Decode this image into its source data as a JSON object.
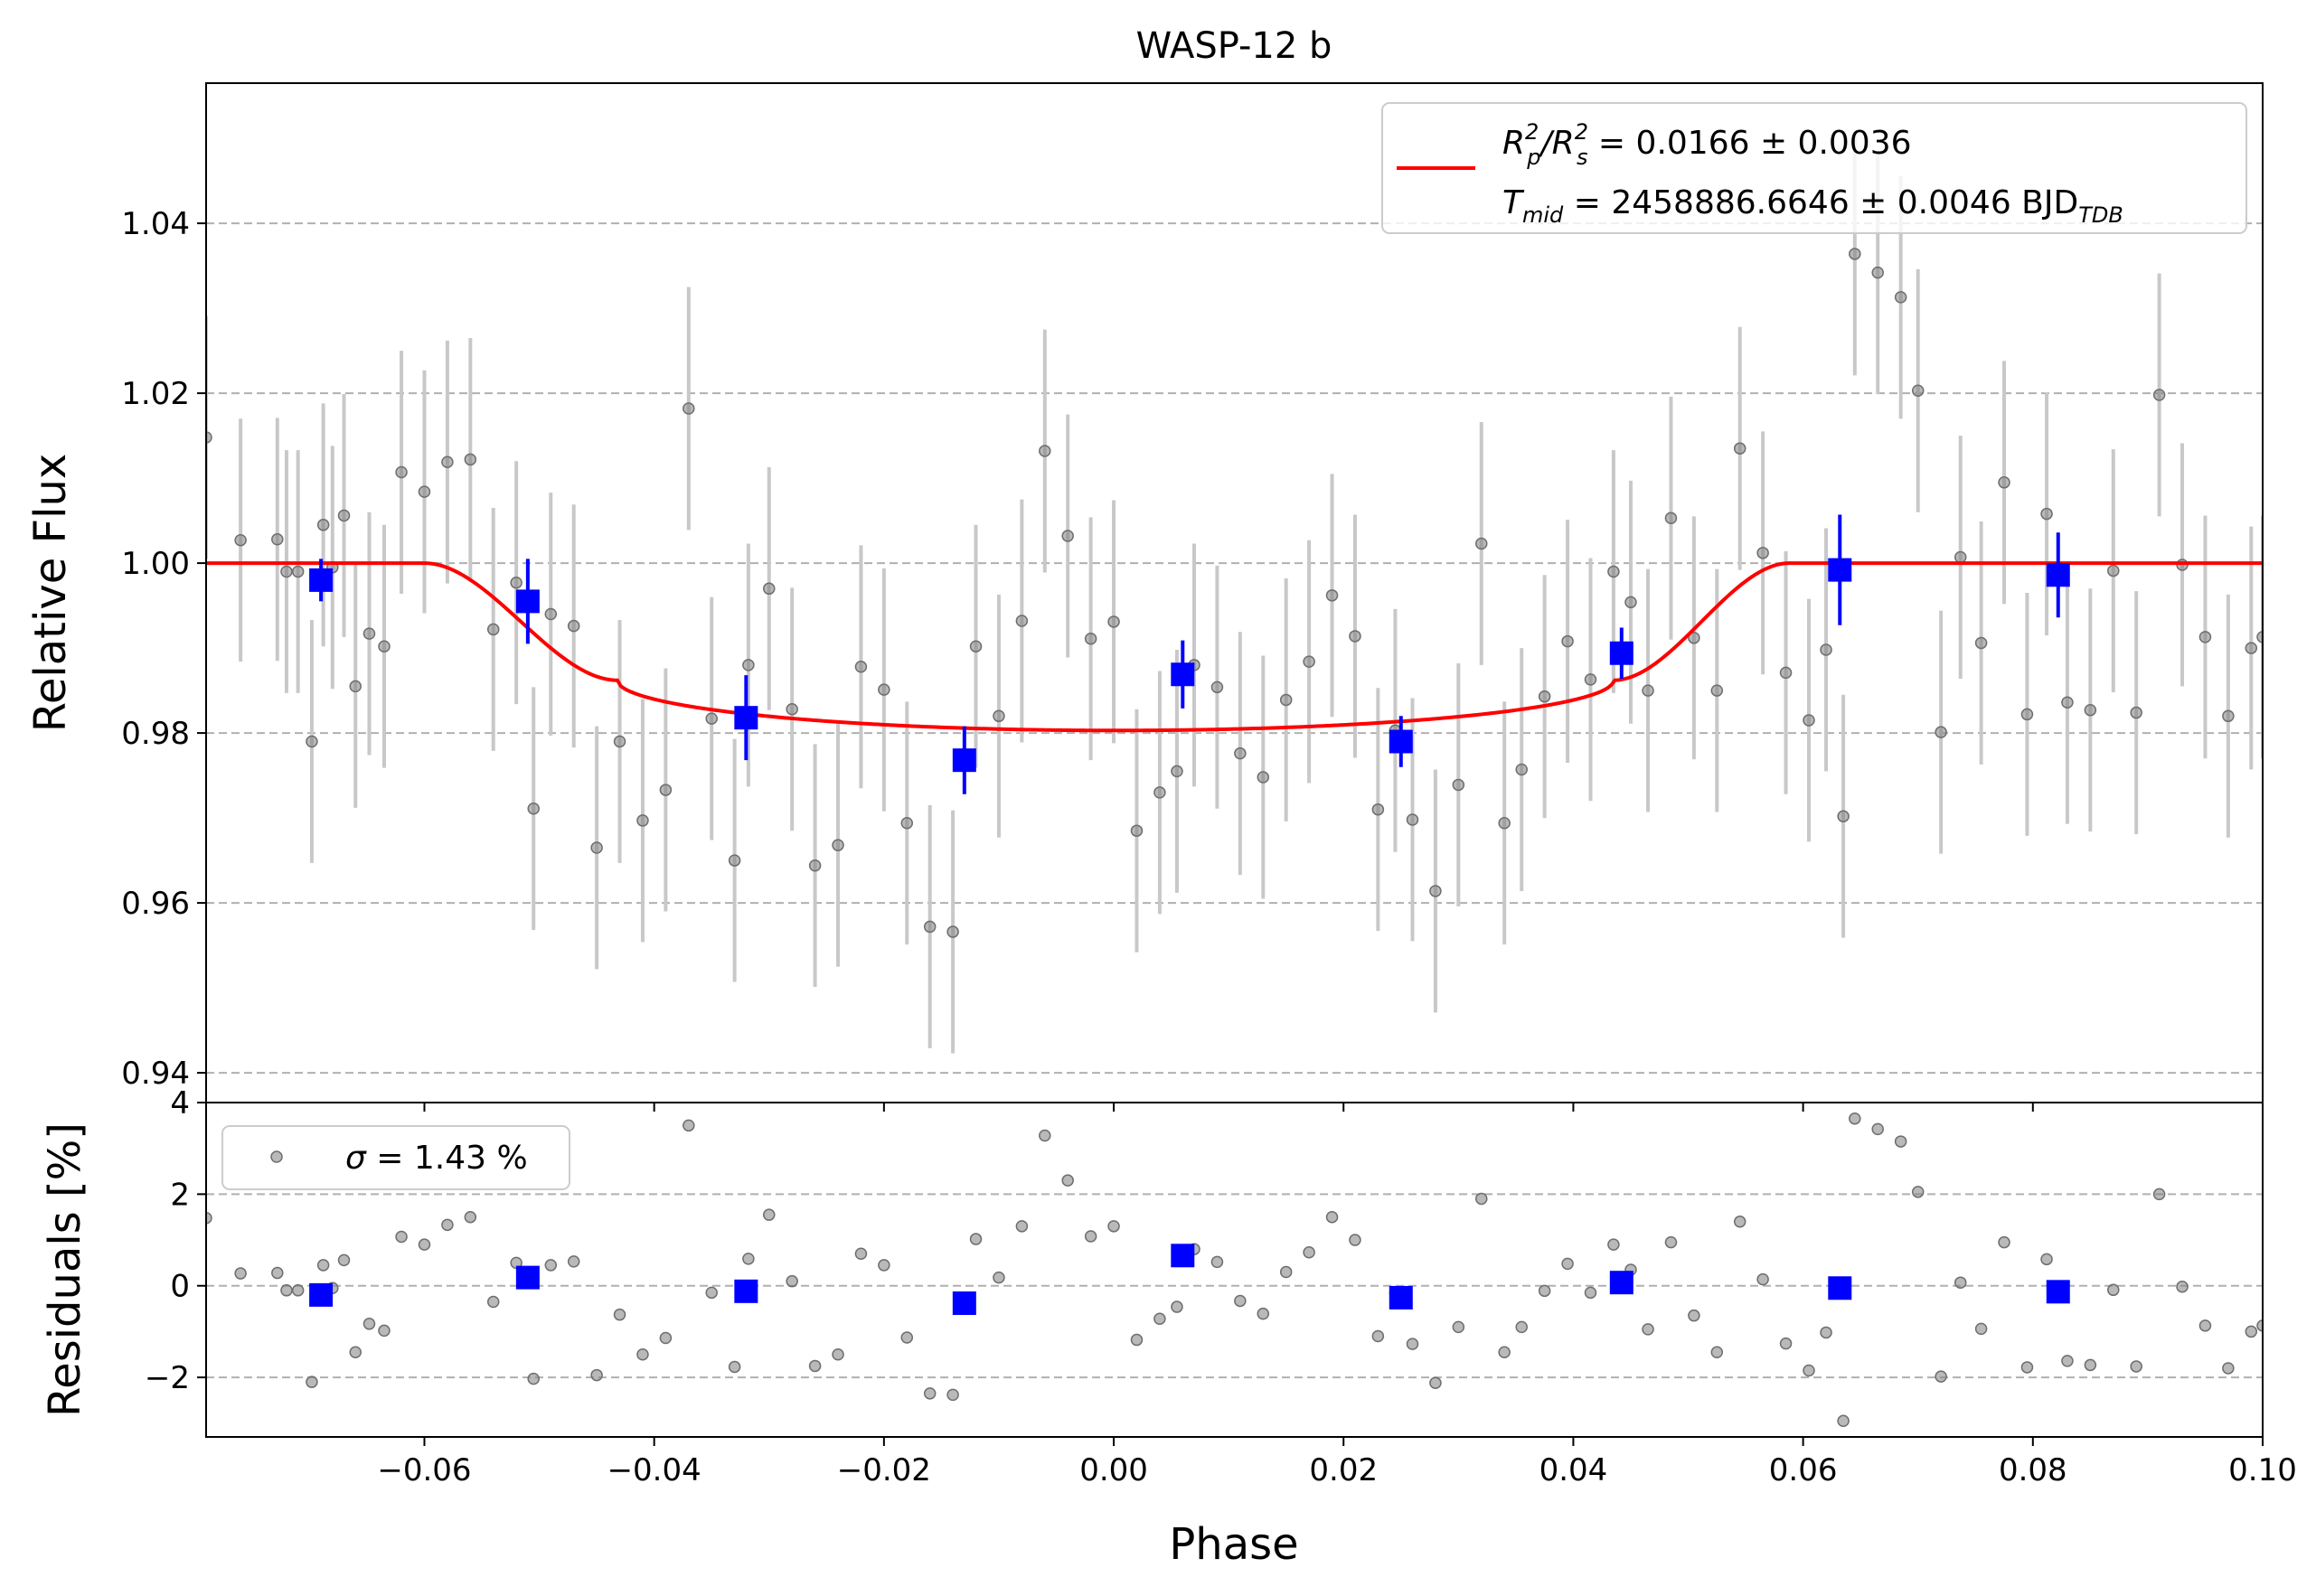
{
  "chart_data": [
    {
      "panel": "transit",
      "type": "scatter",
      "title": "WASP-12 b",
      "xlabel": "",
      "ylabel": "Relative Flux",
      "xlim": [
        -0.079,
        0.1
      ],
      "ylim": [
        0.9365,
        1.0565
      ],
      "xticks": [
        -0.06,
        -0.04,
        -0.02,
        0.0,
        0.02,
        0.04,
        0.06,
        0.08,
        0.1
      ],
      "xtick_labels": [
        "−0.06",
        "−0.04",
        "−0.02",
        "0.00",
        "0.02",
        "0.04",
        "0.06",
        "0.08",
        "0.10"
      ],
      "yticks": [
        0.94,
        0.96,
        0.98,
        1.0,
        1.02,
        1.04
      ],
      "ytick_labels": [
        "0.94",
        "0.96",
        "0.98",
        "1.00",
        "1.02",
        "1.04"
      ],
      "grid": "horizontal dashed",
      "legend_position": "top-right",
      "legend_line1": {
        "main": "R",
        "sub1": "p",
        "sup1": "2",
        "slash": "/R",
        "sub2": "s",
        "sup2": "2",
        "rest": " = 0.0166 ± 0.0036"
      },
      "legend_line2": {
        "main": "T",
        "sub": "mid",
        "rest": " = 2458886.6646 ± 0.0046 BJD",
        "sub2": "TDB"
      },
      "colors": {
        "data": "#808080",
        "errorbar": "#c8c8c8",
        "binned": "#0000ff",
        "model": "#ff0000",
        "grid": "#b0b0b0"
      },
      "series": [
        {
          "role": "data",
          "x": [
            -0.079,
            -0.076,
            -0.0728,
            -0.072,
            -0.071,
            -0.0698,
            -0.0688,
            -0.068,
            -0.067,
            -0.066,
            -0.0648,
            -0.0635,
            -0.062,
            -0.06,
            -0.058,
            -0.056,
            -0.054,
            -0.052,
            -0.0505,
            -0.049,
            -0.047,
            -0.045,
            -0.043,
            -0.041,
            -0.039,
            -0.037,
            -0.035,
            -0.033,
            -0.0318,
            -0.03,
            -0.028,
            -0.026,
            -0.024,
            -0.022,
            -0.02,
            -0.018,
            -0.016,
            -0.014,
            -0.012,
            -0.01,
            -0.008,
            -0.006,
            -0.004,
            -0.002,
            0.0,
            0.002,
            0.004,
            0.0055,
            0.007,
            0.009,
            0.011,
            0.013,
            0.015,
            0.017,
            0.019,
            0.021,
            0.023,
            0.0245,
            0.026,
            0.028,
            0.03,
            0.032,
            0.034,
            0.0355,
            0.0375,
            0.0395,
            0.0415,
            0.0435,
            0.045,
            0.0465,
            0.0485,
            0.0505,
            0.0525,
            0.0545,
            0.0565,
            0.0585,
            0.0605,
            0.062,
            0.0635,
            0.0645,
            0.0665,
            0.0685,
            0.07,
            0.072,
            0.0737,
            0.0755,
            0.0775,
            0.0795,
            0.0812,
            0.083,
            0.085,
            0.087,
            0.089,
            0.091,
            0.093,
            0.095,
            0.097,
            0.099,
            0.1
          ],
          "y": [
            1.0148,
            1.0027,
            1.0028,
            0.999,
            0.999,
            0.979,
            1.0045,
            0.9995,
            1.0056,
            0.9855,
            0.9917,
            0.9902,
            1.0107,
            1.0084,
            1.0119,
            1.0122,
            0.9922,
            0.9977,
            0.9711,
            0.994,
            0.9926,
            0.9665,
            0.979,
            0.9697,
            0.9733,
            1.0182,
            0.9817,
            0.965,
            0.988,
            0.997,
            0.9828,
            0.9644,
            0.9668,
            0.9878,
            0.9851,
            0.9694,
            0.9572,
            0.9566,
            0.9902,
            0.982,
            0.9932,
            1.0132,
            1.0032,
            0.9911,
            0.9931,
            0.9685,
            0.973,
            0.9755,
            0.988,
            0.9854,
            0.9776,
            0.9748,
            0.9839,
            0.9884,
            0.9962,
            0.9914,
            0.971,
            0.9803,
            0.9698,
            0.9614,
            0.9739,
            1.0023,
            0.9694,
            0.9757,
            0.9843,
            0.9908,
            0.9863,
            0.999,
            0.9954,
            0.985,
            1.0053,
            0.9912,
            0.985,
            1.0135,
            1.0012,
            0.9871,
            0.9815,
            0.9898,
            0.9702,
            1.0364,
            1.0342,
            1.0313,
            1.0203,
            0.9801,
            1.0007,
            0.9906,
            1.0095,
            0.9822,
            1.0058,
            0.9836,
            0.9827,
            0.9991,
            0.9824,
            1.0198,
            0.9998,
            0.9913,
            0.982,
            0.99,
            0.9913
          ],
          "yerr": 0.0143
        },
        {
          "role": "binned",
          "x": [
            -0.069,
            -0.051,
            -0.032,
            -0.013,
            0.006,
            0.025,
            0.0442,
            0.0632,
            0.0822
          ],
          "y": [
            0.998,
            0.9955,
            0.9818,
            0.9768,
            0.9869,
            0.979,
            0.9894,
            0.9992,
            0.9986
          ],
          "yerr": [
            0.0025,
            0.005,
            0.005,
            0.004,
            0.004,
            0.003,
            0.003,
            0.0065,
            0.005
          ]
        },
        {
          "role": "model",
          "params": {
            "depth": 0.0197,
            "t1": -0.06,
            "t2": -0.0432,
            "t3": 0.0435,
            "t4": 0.0588,
            "limb": 0.3
          }
        }
      ]
    },
    {
      "panel": "residuals",
      "type": "scatter",
      "xlabel": "Phase",
      "ylabel": "Residuals [%]",
      "xlim": [
        -0.079,
        0.1
      ],
      "ylim": [
        -3.3,
        4.0
      ],
      "yticks": [
        -2,
        0,
        2,
        4
      ],
      "ytick_labels": [
        "−2",
        "0",
        "2",
        "4"
      ],
      "grid": "horizontal dashed",
      "legend_position": "top-left",
      "legend_label": {
        "sigma": "σ",
        "rest": " = 1.43 %"
      },
      "series": [
        {
          "role": "residual",
          "x": [
            -0.079,
            -0.076,
            -0.0728,
            -0.072,
            -0.071,
            -0.0698,
            -0.0688,
            -0.068,
            -0.067,
            -0.066,
            -0.0648,
            -0.0635,
            -0.062,
            -0.06,
            -0.058,
            -0.056,
            -0.054,
            -0.052,
            -0.0505,
            -0.049,
            -0.047,
            -0.045,
            -0.043,
            -0.041,
            -0.039,
            -0.037,
            -0.035,
            -0.033,
            -0.0318,
            -0.03,
            -0.028,
            -0.026,
            -0.024,
            -0.022,
            -0.02,
            -0.018,
            -0.016,
            -0.014,
            -0.012,
            -0.01,
            -0.008,
            -0.006,
            -0.004,
            -0.002,
            0.0,
            0.002,
            0.004,
            0.0055,
            0.007,
            0.009,
            0.011,
            0.013,
            0.015,
            0.017,
            0.019,
            0.021,
            0.023,
            0.0245,
            0.026,
            0.028,
            0.03,
            0.032,
            0.034,
            0.0355,
            0.0375,
            0.0395,
            0.0415,
            0.0435,
            0.045,
            0.0465,
            0.0485,
            0.0505,
            0.0525,
            0.0545,
            0.0565,
            0.0585,
            0.0605,
            0.062,
            0.0635,
            0.0645,
            0.0665,
            0.0685,
            0.07,
            0.072,
            0.0737,
            0.0755,
            0.0775,
            0.0795,
            0.0812,
            0.083,
            0.085,
            0.087,
            0.089,
            0.091,
            0.093,
            0.095,
            0.097,
            0.099,
            0.1
          ],
          "y": [
            1.48,
            0.27,
            0.28,
            -0.1,
            -0.1,
            -2.1,
            0.45,
            -0.05,
            0.56,
            -1.45,
            -0.83,
            -0.98,
            1.07,
            0.9,
            1.33,
            1.5,
            -0.35,
            0.5,
            -2.03,
            0.45,
            0.53,
            -1.95,
            -0.63,
            -1.5,
            -1.14,
            3.5,
            -0.15,
            -1.77,
            0.59,
            1.55,
            0.1,
            -1.75,
            -1.5,
            0.7,
            0.45,
            -1.13,
            -2.35,
            -2.38,
            1.02,
            0.18,
            1.3,
            3.28,
            2.3,
            1.08,
            1.3,
            -1.18,
            -0.72,
            -0.46,
            0.8,
            0.52,
            -0.33,
            -0.61,
            0.3,
            0.73,
            1.5,
            1.0,
            -1.1,
            -0.16,
            -1.27,
            -2.12,
            -0.9,
            1.9,
            -1.45,
            -0.9,
            -0.11,
            0.48,
            -0.15,
            0.9,
            0.35,
            -0.95,
            0.95,
            -0.65,
            -1.45,
            1.4,
            0.14,
            -1.26,
            -1.85,
            -1.02,
            -2.95,
            3.65,
            3.42,
            3.15,
            2.05,
            -1.98,
            0.07,
            -0.94,
            0.95,
            -1.78,
            0.58,
            -1.64,
            -1.73,
            -0.09,
            -1.76,
            2.0,
            -0.02,
            -0.87,
            -1.8,
            -1.0,
            -0.87
          ]
        },
        {
          "role": "binned",
          "x": [
            -0.069,
            -0.051,
            -0.032,
            -0.013,
            0.006,
            0.025,
            0.0442,
            0.0632,
            0.0822
          ],
          "y": [
            -0.2,
            0.18,
            -0.12,
            -0.38,
            0.66,
            -0.26,
            0.07,
            -0.05,
            -0.13
          ]
        }
      ]
    }
  ]
}
